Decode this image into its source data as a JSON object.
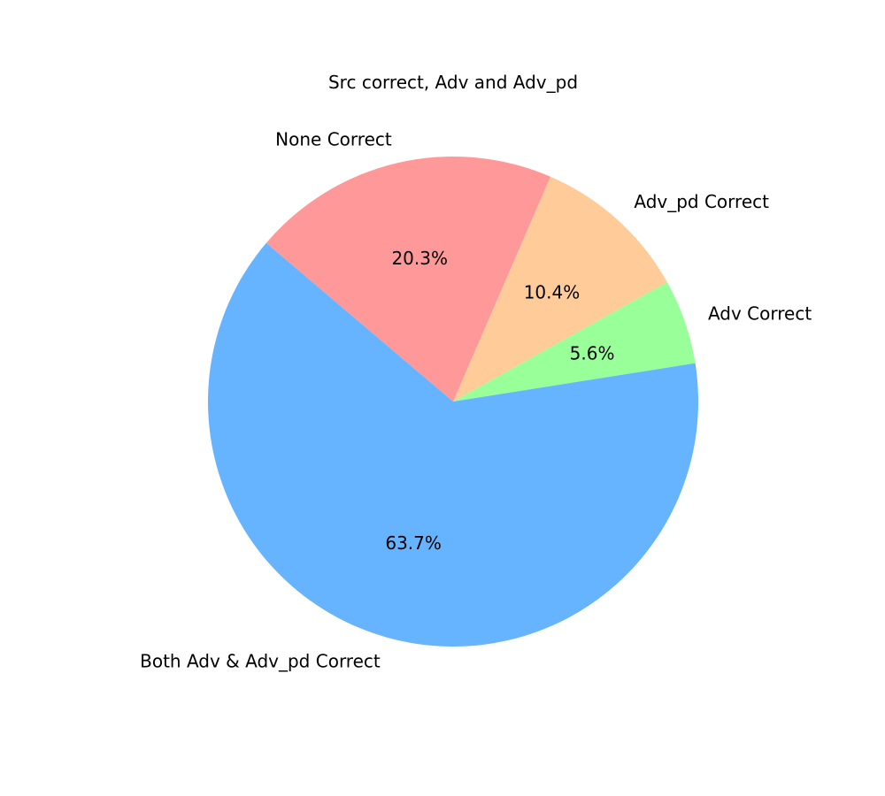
{
  "chart_data": {
    "type": "pie",
    "title": "Src correct, Adv and Adv_pd",
    "slices": [
      {
        "label": "Adv Correct",
        "value": 5.6,
        "pct_text": "5.6%",
        "color": "#99ff99"
      },
      {
        "label": "Adv_pd Correct",
        "value": 10.4,
        "pct_text": "10.4%",
        "color": "#ffcc99"
      },
      {
        "label": "None Correct",
        "value": 20.3,
        "pct_text": "20.3%",
        "color": "#ff9999"
      },
      {
        "label": "Both Adv & Adv_pd Correct",
        "value": 63.7,
        "pct_text": "63.7%",
        "color": "#66b3ff"
      }
    ],
    "legend": "none",
    "direction": "counterclockwise"
  }
}
